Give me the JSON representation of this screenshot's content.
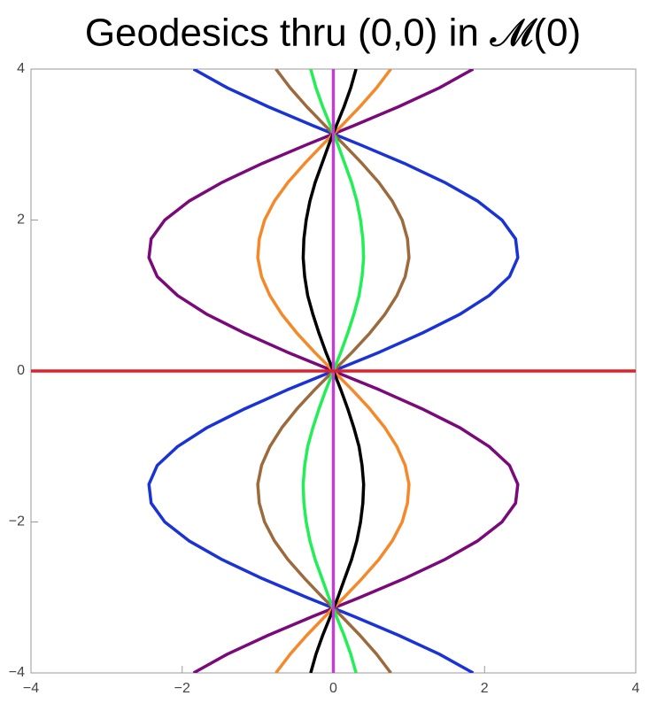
{
  "chart_data": {
    "type": "line",
    "title": "Geodesics thru (0,0) in 𝓜(0)",
    "xlim": [
      -4,
      4
    ],
    "ylim": [
      -4,
      4
    ],
    "xticks": [
      {
        "value": -4,
        "label": "−4"
      },
      {
        "value": -2,
        "label": "−2"
      },
      0,
      2,
      4
    ],
    "yticks": [
      {
        "value": -4,
        "label": "−4"
      },
      {
        "value": -2,
        "label": "−2"
      },
      0,
      2,
      4
    ],
    "series": [
      {
        "color": "#1a33d6",
        "y": [
          -4,
          -3.75,
          -3.5,
          -3.25,
          -3,
          -2.75,
          -2.5,
          -2.25,
          -2,
          -1.75,
          -1.5,
          -1.25,
          -1,
          -0.75,
          -0.5,
          -0.25,
          0,
          0.25,
          0.5,
          0.75,
          1,
          1.25,
          1.5,
          1.75,
          2,
          2.25,
          2.5,
          2.75,
          3,
          3.25,
          3.5,
          3.75,
          4
        ],
        "x": [
          1.85,
          1.4,
          0.86,
          0.27,
          -0.35,
          -0.94,
          -1.47,
          -1.91,
          -2.23,
          -2.41,
          -2.44,
          -2.33,
          -2.06,
          -1.67,
          -1.17,
          -0.61,
          0,
          0.61,
          1.17,
          1.67,
          2.06,
          2.33,
          2.44,
          2.41,
          2.23,
          1.91,
          1.47,
          0.94,
          0.35,
          -0.27,
          -0.86,
          -1.4,
          -1.85
        ]
      },
      {
        "color": "#7a0a7a",
        "y": [
          -4,
          -3.75,
          -3.5,
          -3.25,
          -3,
          -2.75,
          -2.5,
          -2.25,
          -2,
          -1.75,
          -1.5,
          -1.25,
          -1,
          -0.75,
          -0.5,
          -0.25,
          0,
          0.25,
          0.5,
          0.75,
          1,
          1.25,
          1.5,
          1.75,
          2,
          2.25,
          2.5,
          2.75,
          3,
          3.25,
          3.5,
          3.75,
          4
        ],
        "x": [
          -1.85,
          -1.4,
          -0.86,
          -0.27,
          0.35,
          0.94,
          1.47,
          1.91,
          2.23,
          2.41,
          2.44,
          2.33,
          2.06,
          1.67,
          1.17,
          0.61,
          0,
          -0.61,
          -1.17,
          -1.67,
          -2.06,
          -2.33,
          -2.44,
          -2.41,
          -2.23,
          -1.91,
          -1.47,
          -0.94,
          -0.35,
          0.27,
          0.86,
          1.4,
          1.85
        ]
      },
      {
        "color": "#9c6a3c",
        "y": [
          -4,
          -3.75,
          -3.5,
          -3.25,
          -3,
          -2.75,
          -2.5,
          -2.25,
          -2,
          -1.75,
          -1.5,
          -1.25,
          -1,
          -0.75,
          -0.5,
          -0.25,
          0,
          0.25,
          0.5,
          0.75,
          1,
          1.25,
          1.5,
          1.75,
          2,
          2.25,
          2.5,
          2.75,
          3,
          3.25,
          3.5,
          3.75,
          4
        ],
        "x": [
          0.76,
          0.57,
          0.35,
          0.11,
          -0.14,
          -0.38,
          -0.6,
          -0.78,
          -0.91,
          -0.98,
          -1,
          -0.95,
          -0.84,
          -0.68,
          -0.48,
          -0.25,
          0,
          0.25,
          0.48,
          0.68,
          0.84,
          0.95,
          1,
          0.98,
          0.91,
          0.78,
          0.6,
          0.38,
          0.14,
          -0.11,
          -0.35,
          -0.57,
          -0.76
        ]
      },
      {
        "color": "#f5892a",
        "y": [
          -4,
          -3.75,
          -3.5,
          -3.25,
          -3,
          -2.75,
          -2.5,
          -2.25,
          -2,
          -1.75,
          -1.5,
          -1.25,
          -1,
          -0.75,
          -0.5,
          -0.25,
          0,
          0.25,
          0.5,
          0.75,
          1,
          1.25,
          1.5,
          1.75,
          2,
          2.25,
          2.5,
          2.75,
          3,
          3.25,
          3.5,
          3.75,
          4
        ],
        "x": [
          -0.76,
          -0.57,
          -0.35,
          -0.11,
          0.14,
          0.38,
          0.6,
          0.78,
          0.91,
          0.98,
          1,
          0.95,
          0.84,
          0.68,
          0.48,
          0.25,
          0,
          -0.25,
          -0.48,
          -0.68,
          -0.84,
          -0.95,
          -1,
          -0.98,
          -0.91,
          -0.78,
          -0.6,
          -0.38,
          -0.14,
          0.11,
          0.35,
          0.57,
          0.76
        ]
      },
      {
        "color": "#22ee55",
        "y": [
          -4,
          -3.75,
          -3.5,
          -3.25,
          -3,
          -2.75,
          -2.5,
          -2.25,
          -2,
          -1.75,
          -1.5,
          -1.25,
          -1,
          -0.75,
          -0.5,
          -0.25,
          0,
          0.25,
          0.5,
          0.75,
          1,
          1.25,
          1.5,
          1.75,
          2,
          2.25,
          2.5,
          2.75,
          3,
          3.25,
          3.5,
          3.75,
          4
        ],
        "x": [
          0.3,
          0.23,
          0.14,
          0.04,
          -0.06,
          -0.15,
          -0.24,
          -0.31,
          -0.36,
          -0.39,
          -0.4,
          -0.38,
          -0.34,
          -0.27,
          -0.19,
          -0.1,
          0,
          0.1,
          0.19,
          0.27,
          0.34,
          0.38,
          0.4,
          0.39,
          0.36,
          0.31,
          0.24,
          0.15,
          0.06,
          -0.04,
          -0.14,
          -0.23,
          -0.3
        ]
      },
      {
        "color": "#000000",
        "y": [
          -4,
          -3.75,
          -3.5,
          -3.25,
          -3,
          -2.75,
          -2.5,
          -2.25,
          -2,
          -1.75,
          -1.5,
          -1.25,
          -1,
          -0.75,
          -0.5,
          -0.25,
          0,
          0.25,
          0.5,
          0.75,
          1,
          1.25,
          1.5,
          1.75,
          2,
          2.25,
          2.5,
          2.75,
          3,
          3.25,
          3.5,
          3.75,
          4
        ],
        "x": [
          -0.3,
          -0.23,
          -0.14,
          -0.04,
          0.06,
          0.15,
          0.24,
          0.31,
          0.36,
          0.39,
          0.4,
          0.38,
          0.34,
          0.27,
          0.19,
          0.1,
          0,
          -0.1,
          -0.19,
          -0.27,
          -0.34,
          -0.38,
          -0.4,
          -0.39,
          -0.36,
          -0.31,
          -0.24,
          -0.15,
          -0.06,
          0.04,
          0.14,
          0.23,
          0.3
        ]
      },
      {
        "color": "#c040d0",
        "x": [
          0,
          0
        ],
        "y": [
          -4,
          4
        ]
      },
      {
        "color": "#e0202a",
        "x": [
          -4,
          4
        ],
        "y": [
          0,
          0
        ]
      }
    ]
  }
}
